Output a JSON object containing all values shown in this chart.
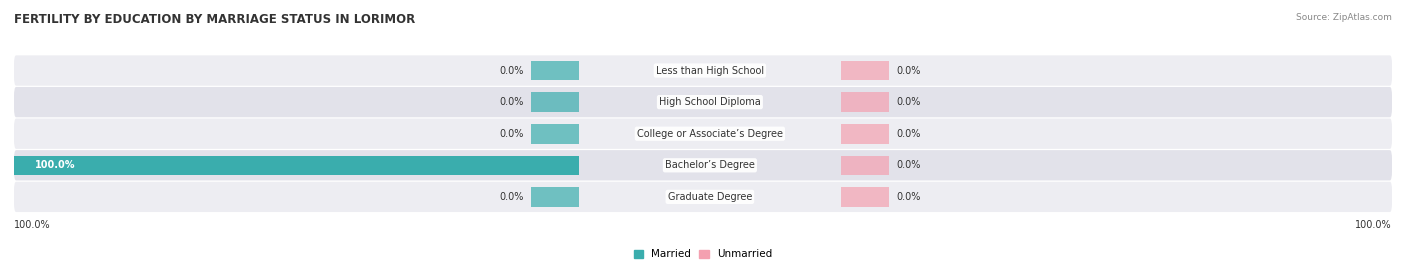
{
  "title": "FERTILITY BY EDUCATION BY MARRIAGE STATUS IN LORIMOR",
  "source": "Source: ZipAtlas.com",
  "categories": [
    "Less than High School",
    "High School Diploma",
    "College or Associate’s Degree",
    "Bachelor’s Degree",
    "Graduate Degree"
  ],
  "married": [
    0.0,
    0.0,
    0.0,
    100.0,
    0.0
  ],
  "unmarried": [
    0.0,
    0.0,
    0.0,
    0.0,
    0.0
  ],
  "married_color": "#3aadad",
  "unmarried_color": "#f4a0b0",
  "row_bg_color_odd": "#ededf2",
  "row_bg_color_even": "#e2e2ea",
  "title_color": "#333333",
  "text_color": "#333333",
  "source_color": "#888888",
  "legend_married": "Married",
  "legend_unmarried": "Unmarried",
  "title_fontsize": 8.5,
  "label_fontsize": 7.0,
  "value_fontsize": 7.0,
  "source_fontsize": 6.5,
  "legend_fontsize": 7.5,
  "bottom_axis_label_left": "100.0%",
  "bottom_axis_label_right": "100.0%"
}
